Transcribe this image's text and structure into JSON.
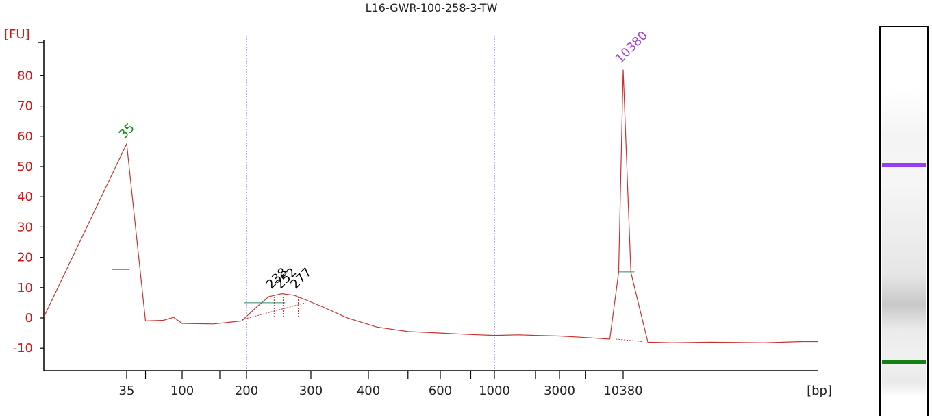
{
  "chart_data": {
    "type": "line",
    "title": "L16-GWR-100-258-3-TW",
    "ylabel": "[FU]",
    "xlabel": "[bp]",
    "ylim": [
      -17,
      90
    ],
    "yticks": [
      80,
      70,
      60,
      50,
      40,
      30,
      20,
      10,
      0,
      -10
    ],
    "xticks": [
      "35",
      "100",
      "200",
      "300",
      "400",
      "600",
      "1000",
      "3000",
      "10380"
    ],
    "grid_lines_at": [
      "200",
      "1000"
    ],
    "series": [
      {
        "x": [
          25,
          35,
          50,
          70,
          85,
          100,
          140,
          190,
          200,
          215,
          230,
          250,
          270,
          290,
          320,
          360,
          420,
          500,
          600,
          800,
          1000,
          1500,
          2000,
          3000,
          5000,
          8000,
          9500,
          10380,
          11000,
          12500,
          15000,
          20000,
          30000,
          40000,
          45000
        ],
        "y": [
          0.3,
          57.5,
          -1.0,
          -0.8,
          0.2,
          -1.8,
          -2.0,
          -1.0,
          0.5,
          4.0,
          7.0,
          8.0,
          7.5,
          6.0,
          3.5,
          0.0,
          -3.0,
          -4.5,
          -5.0,
          -5.5,
          -5.8,
          -5.6,
          -5.8,
          -6.0,
          -6.5,
          -7.0,
          15.0,
          82.0,
          15.0,
          -8.0,
          -8.2,
          -8.0,
          -8.2,
          -7.8,
          -7.8
        ]
      }
    ],
    "peaks": [
      {
        "label": "35",
        "color": "#1a8a1a"
      },
      {
        "label": "238",
        "color": "#000000"
      },
      {
        "label": "252",
        "color": "#000000"
      },
      {
        "label": "277",
        "color": "#000000"
      },
      {
        "label": "10380",
        "color": "#a040e0"
      }
    ],
    "gel_bands": [
      {
        "color": "#9a3cf0",
        "label": "upper marker"
      },
      {
        "color": "#148014",
        "label": "lower marker"
      }
    ]
  }
}
